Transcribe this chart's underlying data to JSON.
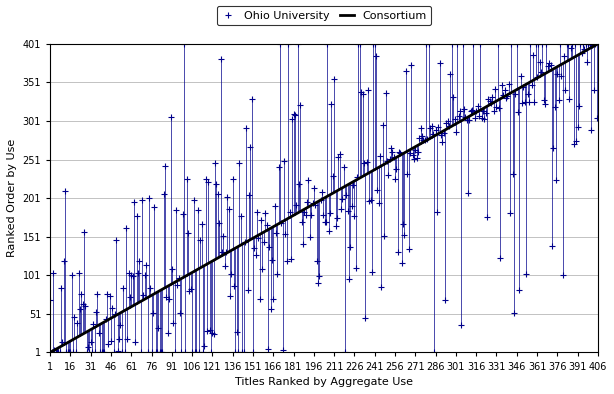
{
  "title": "",
  "xlabel": "Titles Ranked by Aggregate Use",
  "ylabel": "Ranked Order by Use",
  "xlim": [
    1,
    406
  ],
  "ylim": [
    1,
    401
  ],
  "xticks": [
    1,
    16,
    31,
    46,
    61,
    76,
    91,
    106,
    121,
    136,
    151,
    166,
    181,
    196,
    211,
    226,
    241,
    256,
    271,
    286,
    301,
    316,
    331,
    346,
    361,
    376,
    391,
    406
  ],
  "yticks": [
    1,
    51,
    101,
    151,
    201,
    251,
    301,
    351,
    401
  ],
  "n_points": 406,
  "legend_labels": [
    "Ohio University",
    "Consortium"
  ],
  "line_color": "#00008B",
  "diagonal_color": "#000000",
  "background_color": "#ffffff",
  "figsize": [
    6.14,
    3.94
  ],
  "dpi": 100
}
